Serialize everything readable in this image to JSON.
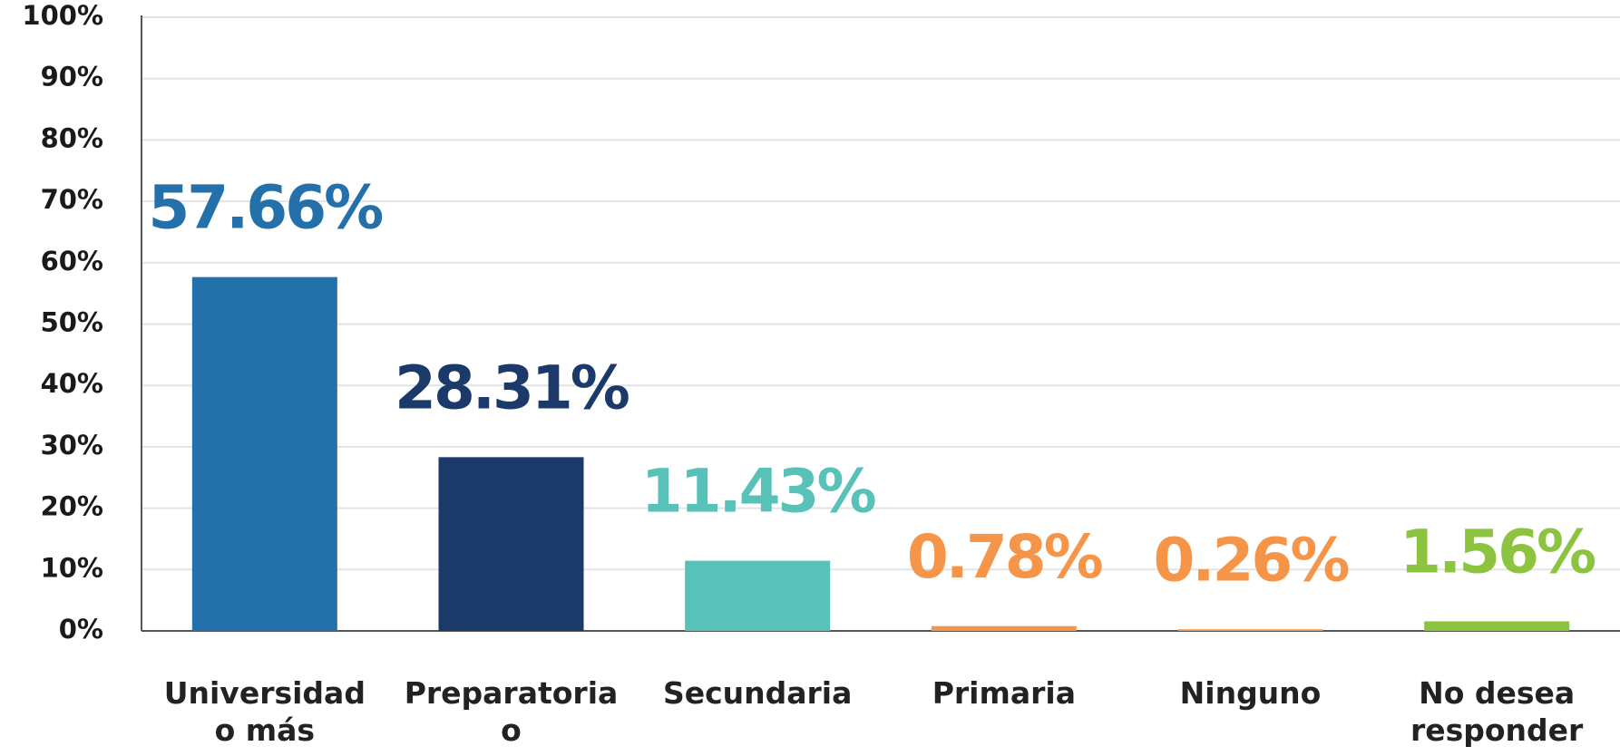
{
  "chart_data": {
    "type": "bar",
    "categories": [
      "Universidad o más",
      "Preparatoria o equivalente",
      "Secundaria",
      "Primaria",
      "Ninguno",
      "No desea responder"
    ],
    "values": [
      57.66,
      28.31,
      11.43,
      0.78,
      0.26,
      1.56
    ],
    "value_labels": [
      "57.66%",
      "28.31%",
      "11.43%",
      "0.78%",
      "0.26%",
      "1.56%"
    ],
    "colors": [
      "#2370ab",
      "#1b3a69",
      "#58c2b8",
      "#f5954a",
      "#f5954a",
      "#8cc33f"
    ],
    "ylim": [
      0,
      100
    ],
    "yticks": [
      {
        "value": 0,
        "label": "0%"
      },
      {
        "value": 10,
        "label": "10%"
      },
      {
        "value": 20,
        "label": "20%"
      },
      {
        "value": 30,
        "label": "30%"
      },
      {
        "value": 40,
        "label": "40%"
      },
      {
        "value": 50,
        "label": "50%"
      },
      {
        "value": 60,
        "label": "60%"
      },
      {
        "value": 70,
        "label": "70%"
      },
      {
        "value": 80,
        "label": "80%"
      },
      {
        "value": 90,
        "label": "90%"
      },
      {
        "value": 100,
        "label": "100%"
      }
    ],
    "grid": true
  }
}
